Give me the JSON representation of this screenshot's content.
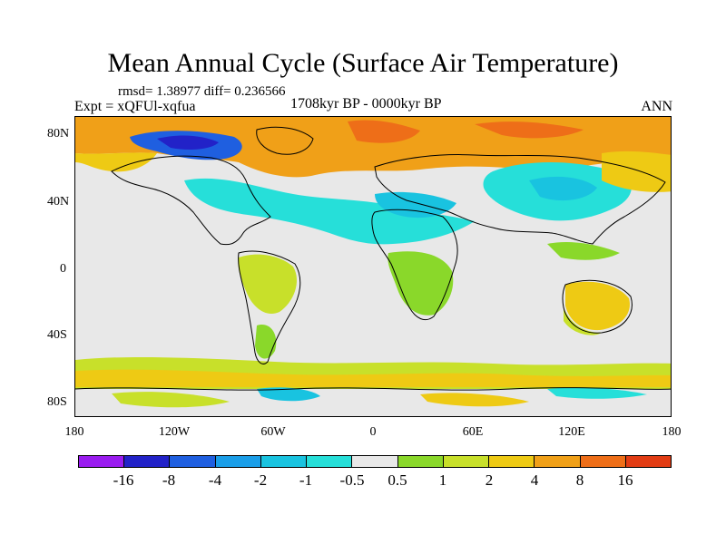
{
  "figure": {
    "title": "Mean Annual Cycle (Surface Air Temperature)",
    "stats": "rmsd= 1.38977 diff= 0.236566",
    "experiment": "Expt = xQFUl-xqfua",
    "period": "1708kyr BP - 0000kyr BP",
    "season": "ANN"
  },
  "map": {
    "lat_labels": [
      "80N",
      "40N",
      "0",
      "40S",
      "80S"
    ],
    "lon_labels": [
      "180",
      "120W",
      "60W",
      "0",
      "60E",
      "120E",
      "180"
    ],
    "lat_range": [
      -90,
      90
    ],
    "lon_range": [
      -180,
      180
    ],
    "background_color": "#e8e8e8",
    "coastline_color": "#000000"
  },
  "colorbar": {
    "labels": [
      "-16",
      "-8",
      "-4",
      "-2",
      "-1",
      "-0.5",
      "0.5",
      "1",
      "2",
      "4",
      "8",
      "16"
    ],
    "colors": [
      "#9a1cf0",
      "#2222c8",
      "#1f5fe0",
      "#1a9ee8",
      "#19c3e0",
      "#26dfd9",
      "#e8e8e8",
      "#8ad82a",
      "#c8e02a",
      "#eeca14",
      "#f0a018",
      "#ee6e18",
      "#e23c14"
    ]
  }
}
